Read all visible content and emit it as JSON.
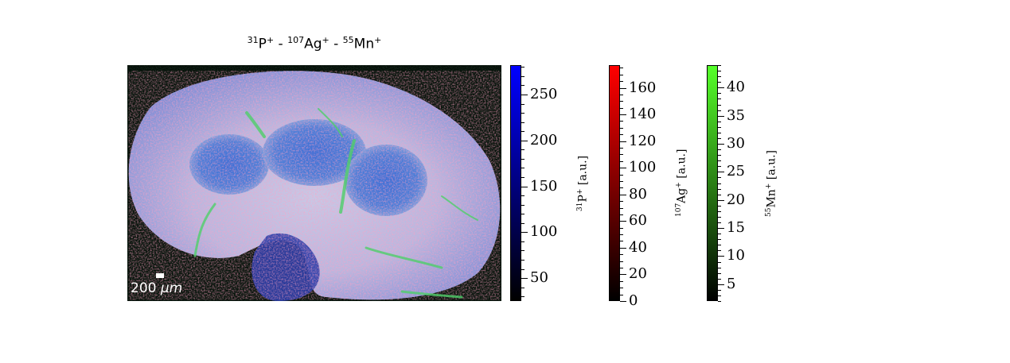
{
  "title": {
    "sup1": "31",
    "el1": "P",
    "ch1": "+",
    "sep1": " - ",
    "sup2": "107",
    "el2": "Ag",
    "ch2": "+",
    "sep2": " - ",
    "sup3": "55",
    "el3": "Mn",
    "ch3": "+"
  },
  "scalebar": {
    "value": "200",
    "unit": "μm"
  },
  "chart_data": [
    {
      "type": "heatmap",
      "title": "31P+ - 107Ag+ - 55Mn+",
      "description_channels": [
        "31P+ (blue)",
        "107Ag+ (red)",
        "55Mn+ (green)"
      ],
      "scale_bar": "200 μm"
    },
    {
      "type": "colorbar",
      "id": "p",
      "label_sup": "31",
      "label_el": "P",
      "label_charge": "+",
      "label_unit": " [a.u.]",
      "color_low": "#000000",
      "color_high": "#0000ff",
      "vmin": 25,
      "vmax": 282,
      "major_ticks": [
        50,
        100,
        150,
        200,
        250
      ],
      "minor_step": 10
    },
    {
      "type": "colorbar",
      "id": "ag",
      "label_sup": "107",
      "label_el": "Ag",
      "label_charge": "+",
      "label_unit": " [a.u.]",
      "color_low": "#000000",
      "color_high": "#ff0000",
      "vmin": 0,
      "vmax": 177,
      "major_ticks": [
        0,
        20,
        40,
        60,
        80,
        100,
        120,
        140,
        160
      ],
      "minor_step": 5
    },
    {
      "type": "colorbar",
      "id": "mn",
      "label_sup": "55",
      "label_el": "Mn",
      "label_charge": "+",
      "label_unit": " [a.u.]",
      "color_low": "#000000",
      "color_high": "#55ff2a",
      "vmin": 2,
      "vmax": 44,
      "major_ticks": [
        5,
        10,
        15,
        20,
        25,
        30,
        35,
        40
      ],
      "minor_step": 1
    }
  ]
}
